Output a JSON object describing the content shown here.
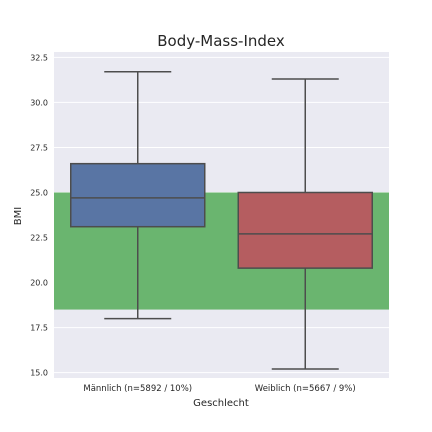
{
  "chart_data": {
    "type": "box",
    "title": "Body-Mass-Index",
    "xlabel": "Geschlecht",
    "ylabel": "BMI",
    "ylim": [
      14.7,
      32.8
    ],
    "yticks": [
      15.0,
      17.5,
      20.0,
      22.5,
      25.0,
      27.5,
      30.0,
      32.5
    ],
    "ytick_labels": [
      "15.0",
      "17.5",
      "20.0",
      "22.5",
      "25.0",
      "27.5",
      "30.0",
      "32.5"
    ],
    "grid": true,
    "reference_band": {
      "from": 18.5,
      "to": 25.0,
      "color": "#6ab56f"
    },
    "categories": [
      "Männlich (n=5892 /  10%)",
      "Weiblich (n=5667 /   9%)"
    ],
    "boxes": [
      {
        "whisker_low": 18.0,
        "q1": 23.1,
        "median": 24.7,
        "q3": 26.6,
        "whisker_high": 31.7,
        "color": "#5975a4"
      },
      {
        "whisker_low": 15.2,
        "q1": 20.8,
        "median": 22.7,
        "q3": 25.0,
        "whisker_high": 31.3,
        "color": "#b55d60"
      }
    ],
    "colors": {
      "background": "#eaeaf2",
      "grid": "#ffffff",
      "line": "#4d4d4d"
    }
  }
}
